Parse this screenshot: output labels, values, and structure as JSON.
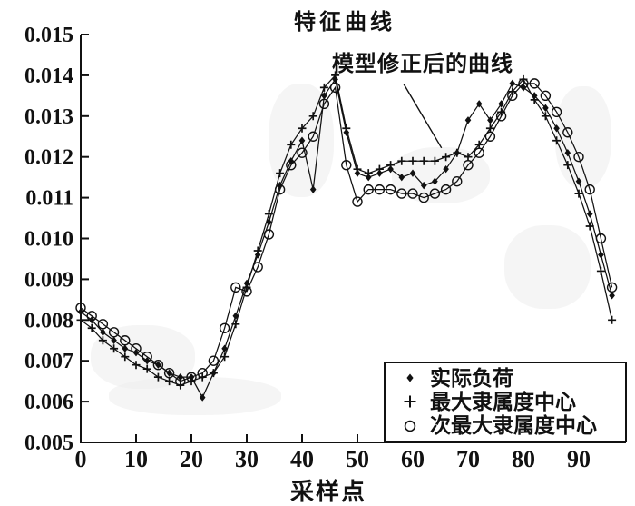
{
  "figure": {
    "background": "#ffffff",
    "ink_color": "#111111"
  },
  "chart_data": {
    "type": "line",
    "title": "特征曲线",
    "xlabel": "采样点",
    "ylabel": "",
    "xlim": [
      0,
      98.5
    ],
    "ylim": [
      0.005,
      0.015
    ],
    "grid": false,
    "legend_position": "lower right",
    "x_ticks": [
      0,
      10,
      20,
      30,
      40,
      50,
      60,
      70,
      80,
      90
    ],
    "y_tick_labels": [
      "0.005",
      "0.006",
      "0.007",
      "0.008",
      "0.009",
      "0.010",
      "0.011",
      "0.012",
      "0.013",
      "0.014",
      "0.015"
    ],
    "annotation": {
      "text": "模型修正后的曲线",
      "line_from_xy": [
        58.4,
        0.01378
      ],
      "line_to_xy": [
        65.2,
        0.01222
      ]
    },
    "x": [
      0,
      2,
      4,
      6,
      8,
      10,
      12,
      14,
      16,
      18,
      20,
      22,
      24,
      26,
      28,
      30,
      32,
      34,
      36,
      38,
      40,
      42,
      44,
      46,
      48,
      50,
      52,
      54,
      56,
      58,
      60,
      62,
      64,
      66,
      68,
      70,
      72,
      74,
      76,
      78,
      80,
      82,
      84,
      86,
      88,
      90,
      92,
      94,
      96
    ],
    "series": [
      {
        "name": "实际负荷",
        "marker": "diamond",
        "values": [
          0.0082,
          0.008,
          0.0077,
          0.0075,
          0.0073,
          0.0072,
          0.007,
          0.0069,
          0.0067,
          0.0066,
          0.0066,
          0.0061,
          0.0067,
          0.0073,
          0.0081,
          0.0089,
          0.0096,
          0.0104,
          0.0113,
          0.0119,
          0.0124,
          0.0112,
          0.0135,
          0.0139,
          0.0126,
          0.0116,
          0.0115,
          0.0116,
          0.0117,
          0.0115,
          0.0116,
          0.0113,
          0.0114,
          0.0117,
          0.0121,
          0.0129,
          0.0133,
          0.0129,
          0.0133,
          0.0138,
          0.0137,
          0.0135,
          0.0132,
          0.0127,
          0.0121,
          0.0114,
          0.0106,
          0.0096,
          0.0086
        ]
      },
      {
        "name": "最大隶属度中心",
        "marker": "plus",
        "values": [
          0.008,
          0.0078,
          0.0075,
          0.0073,
          0.0071,
          0.0069,
          0.0068,
          0.0066,
          0.0065,
          0.0064,
          0.0065,
          0.0066,
          0.0067,
          0.0071,
          0.0079,
          0.0088,
          0.0097,
          0.0106,
          0.0116,
          0.0123,
          0.0127,
          0.013,
          0.0137,
          0.014,
          0.0127,
          0.0117,
          0.0116,
          0.0117,
          0.0118,
          0.0119,
          0.0119,
          0.0119,
          0.0119,
          0.012,
          0.0121,
          0.012,
          0.0123,
          0.0127,
          0.0131,
          0.0136,
          0.0139,
          0.0134,
          0.013,
          0.0124,
          0.0118,
          0.0111,
          0.0103,
          0.0092,
          0.008
        ]
      },
      {
        "name": "次最大隶属度中心",
        "marker": "circle",
        "values": [
          0.0083,
          0.0081,
          0.0079,
          0.0077,
          0.0075,
          0.0073,
          0.0071,
          0.0069,
          0.0067,
          0.0065,
          0.0066,
          0.0067,
          0.007,
          0.0078,
          0.0088,
          0.0087,
          0.0093,
          0.0101,
          0.0112,
          0.0118,
          0.0121,
          0.0125,
          0.0133,
          0.0137,
          0.0118,
          0.0109,
          0.0112,
          0.0112,
          0.0112,
          0.0111,
          0.0111,
          0.011,
          0.0111,
          0.0112,
          0.0114,
          0.0118,
          0.0121,
          0.0125,
          0.013,
          0.0135,
          0.0138,
          0.0138,
          0.0135,
          0.0131,
          0.0126,
          0.012,
          0.0112,
          0.01,
          0.0088
        ]
      }
    ]
  }
}
